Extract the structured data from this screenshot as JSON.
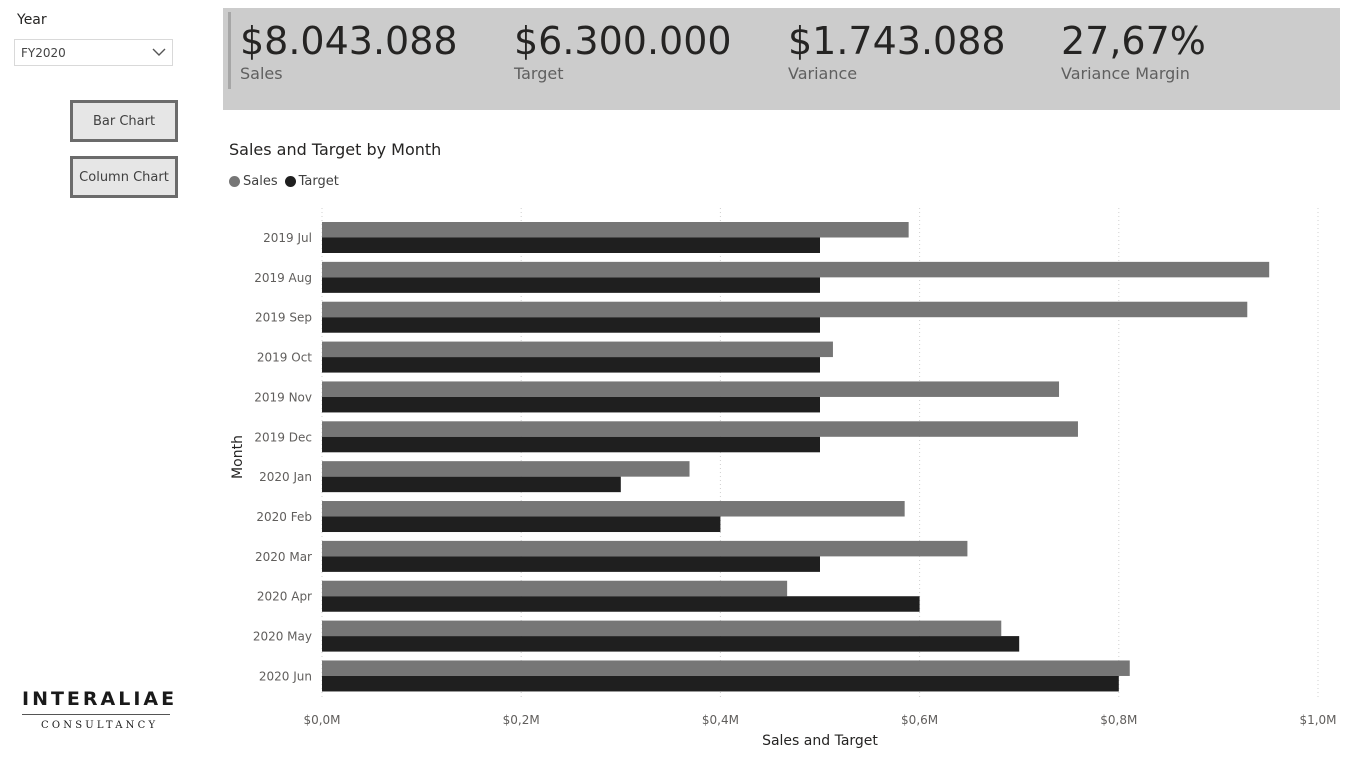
{
  "slicer": {
    "label": "Year",
    "value": "FY2020"
  },
  "buttons": {
    "bar_chart": "Bar Chart",
    "column_chart": "Column Chart"
  },
  "kpis": [
    {
      "value": "$8.043.088",
      "label": "Sales"
    },
    {
      "value": "$6.300.000",
      "label": "Target"
    },
    {
      "value": "$1.743.088",
      "label": "Variance"
    },
    {
      "value": "27,67%",
      "label": "Variance Margin"
    }
  ],
  "logo": {
    "main": "INTERALIAE",
    "sub": "CONSULTANCY"
  },
  "colors": {
    "sales": "#767676",
    "target": "#1f1f1f",
    "kpi_band": "#cccccc",
    "grid": "#d0d0d0"
  },
  "chart_data": {
    "type": "bar",
    "orientation": "horizontal",
    "title": "Sales and Target by Month",
    "xlabel": "Sales and Target",
    "ylabel": "Month",
    "legend": [
      "Sales",
      "Target"
    ],
    "legend_position": "top-left",
    "grid": true,
    "xlim": [
      0,
      1000000
    ],
    "x_ticks": [
      {
        "value": 0,
        "label": "$0,0M"
      },
      {
        "value": 200000,
        "label": "$0,2M"
      },
      {
        "value": 400000,
        "label": "$0,4M"
      },
      {
        "value": 600000,
        "label": "$0,6M"
      },
      {
        "value": 800000,
        "label": "$0,8M"
      },
      {
        "value": 1000000,
        "label": "$1,0M"
      }
    ],
    "categories": [
      "2019 Jul",
      "2019 Aug",
      "2019 Sep",
      "2019 Oct",
      "2019 Nov",
      "2019 Dec",
      "2020 Jan",
      "2020 Feb",
      "2020 Mar",
      "2020 Apr",
      "2020 May",
      "2020 Jun"
    ],
    "series": [
      {
        "name": "Sales",
        "values": [
          589000,
          951000,
          929000,
          513000,
          740000,
          759000,
          369000,
          585000,
          648000,
          467000,
          682000,
          811000
        ]
      },
      {
        "name": "Target",
        "values": [
          500000,
          500000,
          500000,
          500000,
          500000,
          500000,
          300000,
          400000,
          500000,
          600000,
          700000,
          800000
        ]
      }
    ]
  }
}
